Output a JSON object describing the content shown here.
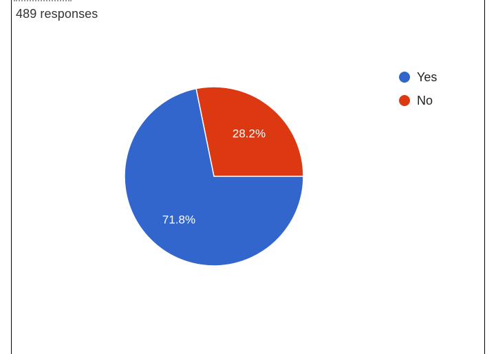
{
  "header": {
    "responses": "489 responses"
  },
  "chart_data": {
    "type": "pie",
    "categories": [
      "Yes",
      "No"
    ],
    "values": [
      71.8,
      28.2
    ],
    "labels": [
      "71.8%",
      "28.2%"
    ],
    "colors": [
      "#3366cc",
      "#dc3912"
    ],
    "legend_position": "top-right"
  }
}
